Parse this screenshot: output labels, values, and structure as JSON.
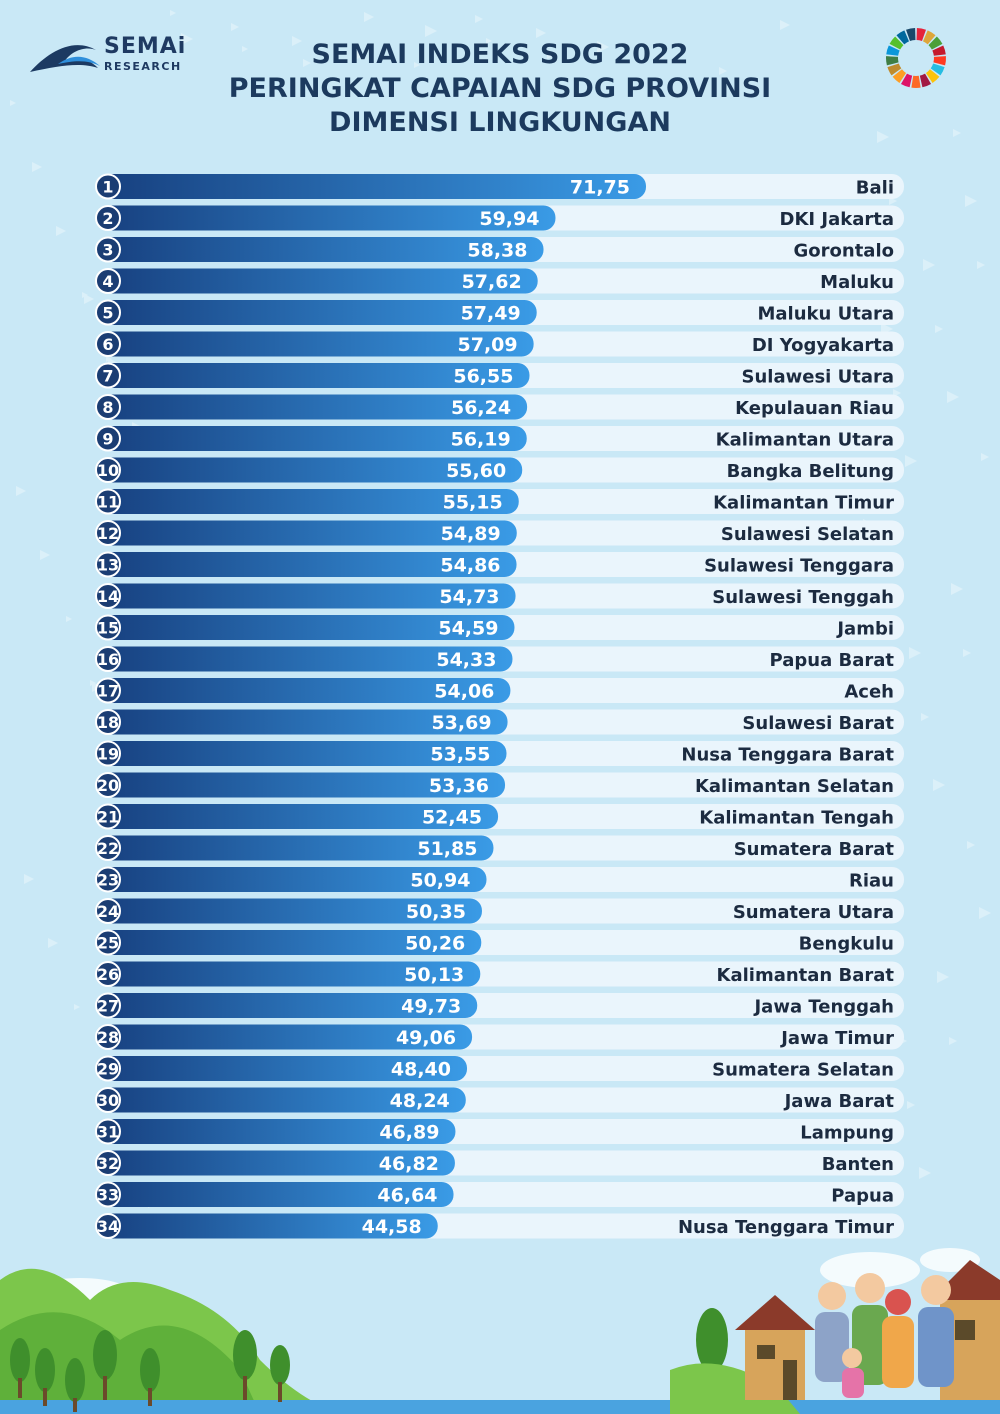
{
  "brand": {
    "name": "SEMAi",
    "sub": "RESEARCH"
  },
  "titles": {
    "line1": "SEMAI INDEKS SDG 2022",
    "line2": "PERINGKAT CAPAIAN SDG PROVINSI",
    "line3": "DIMENSI LINGKUNGAN"
  },
  "colors": {
    "bar_dark": "#1b4f93",
    "bar_light": "#2f8fdb",
    "track": "#eaf5fc",
    "text": "#1c2b40"
  },
  "chart_data": {
    "type": "bar",
    "orientation": "horizontal",
    "title": "SEMAI INDEKS SDG 2022 - PERINGKAT CAPAIAN SDG PROVINSI - DIMENSI LINGKUNGAN",
    "xlabel": "",
    "ylabel": "",
    "xlim": [
      0,
      100
    ],
    "rows": [
      {
        "rank": "1",
        "province": "Bali",
        "value": 71.75,
        "label": "71,75"
      },
      {
        "rank": "2",
        "province": "DKI Jakarta",
        "value": 59.94,
        "label": "59,94"
      },
      {
        "rank": "3",
        "province": "Gorontalo",
        "value": 58.38,
        "label": "58,38"
      },
      {
        "rank": "4",
        "province": "Maluku",
        "value": 57.62,
        "label": "57,62"
      },
      {
        "rank": "5",
        "province": "Maluku Utara",
        "value": 57.49,
        "label": "57,49"
      },
      {
        "rank": "6",
        "province": "DI Yogyakarta",
        "value": 57.09,
        "label": "57,09"
      },
      {
        "rank": "7",
        "province": "Sulawesi Utara",
        "value": 56.55,
        "label": "56,55"
      },
      {
        "rank": "8",
        "province": "Kepulauan Riau",
        "value": 56.24,
        "label": "56,24"
      },
      {
        "rank": "9",
        "province": "Kalimantan Utara",
        "value": 56.19,
        "label": "56,19"
      },
      {
        "rank": "10",
        "province": "Bangka Belitung",
        "value": 55.6,
        "label": "55,60"
      },
      {
        "rank": "11",
        "province": "Kalimantan Timur",
        "value": 55.15,
        "label": "55,15"
      },
      {
        "rank": "12",
        "province": "Sulawesi Selatan",
        "value": 54.89,
        "label": "54,89"
      },
      {
        "rank": "13",
        "province": "Sulawesi Tenggara",
        "value": 54.86,
        "label": "54,86"
      },
      {
        "rank": "14",
        "province": "Sulawesi Tenggah",
        "value": 54.73,
        "label": "54,73"
      },
      {
        "rank": "15",
        "province": "Jambi",
        "value": 54.59,
        "label": "54,59"
      },
      {
        "rank": "16",
        "province": "Papua Barat",
        "value": 54.33,
        "label": "54,33"
      },
      {
        "rank": "17",
        "province": "Aceh",
        "value": 54.06,
        "label": "54,06"
      },
      {
        "rank": "18",
        "province": "Sulawesi Barat",
        "value": 53.69,
        "label": "53,69"
      },
      {
        "rank": "19",
        "province": "Nusa Tenggara Barat",
        "value": 53.55,
        "label": "53,55"
      },
      {
        "rank": "20",
        "province": "Kalimantan Selatan",
        "value": 53.36,
        "label": "53,36"
      },
      {
        "rank": "21",
        "province": "Kalimantan Tengah",
        "value": 52.45,
        "label": "52,45"
      },
      {
        "rank": "22",
        "province": "Sumatera Barat",
        "value": 51.85,
        "label": "51,85"
      },
      {
        "rank": "23",
        "province": "Riau",
        "value": 50.94,
        "label": "50,94"
      },
      {
        "rank": "24",
        "province": "Sumatera Utara",
        "value": 50.35,
        "label": "50,35"
      },
      {
        "rank": "25",
        "province": "Bengkulu",
        "value": 50.26,
        "label": "50,26"
      },
      {
        "rank": "26",
        "province": "Kalimantan Barat",
        "value": 50.13,
        "label": "50,13"
      },
      {
        "rank": "27",
        "province": "Jawa Tenggah",
        "value": 49.73,
        "label": "49,73"
      },
      {
        "rank": "28",
        "province": "Jawa Timur",
        "value": 49.06,
        "label": "49,06"
      },
      {
        "rank": "29",
        "province": "Sumatera Selatan",
        "value": 48.4,
        "label": "48,40"
      },
      {
        "rank": "30",
        "province": "Jawa Barat",
        "value": 48.24,
        "label": "48,24"
      },
      {
        "rank": "31",
        "province": "Lampung",
        "value": 46.89,
        "label": "46,89"
      },
      {
        "rank": "32",
        "province": "Banten",
        "value": 46.82,
        "label": "46,82"
      },
      {
        "rank": "33",
        "province": "Papua",
        "value": 46.64,
        "label": "46,64"
      },
      {
        "rank": "34",
        "province": "Nusa Tenggara Timur",
        "value": 44.58,
        "label": "44,58"
      }
    ]
  }
}
